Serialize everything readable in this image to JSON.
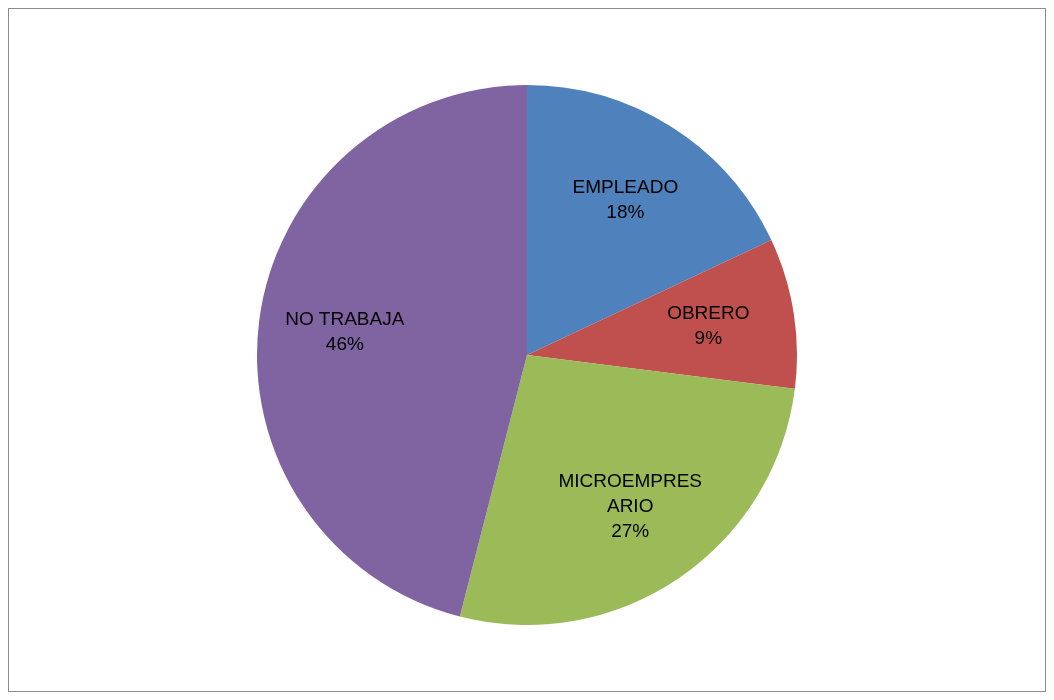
{
  "chart_data": {
    "type": "pie",
    "categories": [
      "EMPLEADO",
      "OBRERO",
      "MICROEMPRESARIO",
      "NO TRABAJA"
    ],
    "values": [
      18,
      9,
      27,
      46
    ],
    "colors": [
      "#4f81bd",
      "#c0504d",
      "#9bbb59",
      "#8064a2"
    ],
    "value_labels": [
      "18%",
      "9%",
      "27%",
      "46%"
    ],
    "legend": false
  }
}
